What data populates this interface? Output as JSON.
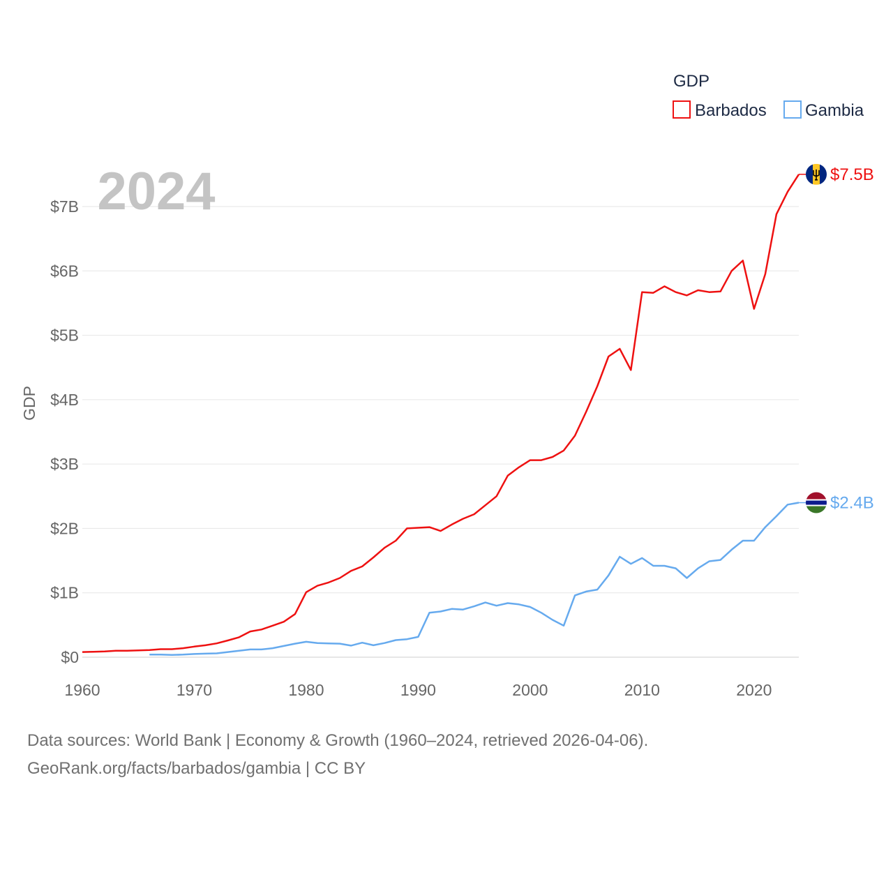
{
  "colors": {
    "barbados": "#ee1111",
    "gambia": "#66aaee",
    "grid": "#e6e6e6",
    "text": "#666666",
    "legend_text": "#1d2a44",
    "year_stamp": "#c4c4c4"
  },
  "chart_data": {
    "type": "line",
    "year_stamp": "2024",
    "ylabel": "GDP",
    "xlabel": "",
    "xlim": [
      1960,
      2024
    ],
    "ylim": [
      0,
      7.5
    ],
    "x_ticks": [
      1960,
      1970,
      1980,
      1990,
      2000,
      2010,
      2020
    ],
    "y_ticks": [
      {
        "value": 0,
        "label": "$0"
      },
      {
        "value": 1,
        "label": "$1B"
      },
      {
        "value": 2,
        "label": "$2B"
      },
      {
        "value": 3,
        "label": "$3B"
      },
      {
        "value": 4,
        "label": "$4B"
      },
      {
        "value": 5,
        "label": "$5B"
      },
      {
        "value": 6,
        "label": "$6B"
      },
      {
        "value": 7,
        "label": "$7B"
      }
    ],
    "legend": {
      "title": "GDP",
      "position": "top-right"
    },
    "units": "billions of US$",
    "series": [
      {
        "name": "Barbados",
        "key": "barbados",
        "end_label": "$7.5B",
        "flag": "barbados-flag",
        "x": [
          1960,
          1961,
          1962,
          1963,
          1964,
          1965,
          1966,
          1967,
          1968,
          1969,
          1970,
          1971,
          1972,
          1973,
          1974,
          1975,
          1976,
          1977,
          1978,
          1979,
          1980,
          1981,
          1982,
          1983,
          1984,
          1985,
          1986,
          1987,
          1988,
          1989,
          1990,
          1991,
          1992,
          1993,
          1994,
          1995,
          1996,
          1997,
          1998,
          1999,
          2000,
          2001,
          2002,
          2003,
          2004,
          2005,
          2006,
          2007,
          2008,
          2009,
          2010,
          2011,
          2012,
          2013,
          2014,
          2015,
          2016,
          2017,
          2018,
          2019,
          2020,
          2021,
          2022,
          2023,
          2024
        ],
        "values": [
          0.08,
          0.085,
          0.09,
          0.1,
          0.1,
          0.105,
          0.11,
          0.125,
          0.125,
          0.14,
          0.165,
          0.185,
          0.215,
          0.26,
          0.31,
          0.4,
          0.43,
          0.49,
          0.55,
          0.67,
          1.01,
          1.11,
          1.16,
          1.23,
          1.34,
          1.41,
          1.55,
          1.7,
          1.81,
          2.0,
          2.01,
          2.02,
          1.96,
          2.06,
          2.15,
          2.22,
          2.36,
          2.5,
          2.82,
          2.95,
          3.06,
          3.06,
          3.11,
          3.21,
          3.44,
          3.81,
          4.21,
          4.67,
          4.79,
          4.46,
          5.67,
          5.66,
          5.76,
          5.67,
          5.62,
          5.7,
          5.67,
          5.68,
          6.0,
          6.16,
          5.41,
          5.95,
          6.88,
          7.23,
          7.5
        ]
      },
      {
        "name": "Gambia",
        "key": "gambia",
        "end_label": "$2.4B",
        "flag": "gambia-flag",
        "x": [
          1966,
          1967,
          1968,
          1969,
          1970,
          1971,
          1972,
          1973,
          1974,
          1975,
          1976,
          1977,
          1978,
          1979,
          1980,
          1981,
          1982,
          1983,
          1984,
          1985,
          1986,
          1987,
          1988,
          1989,
          1990,
          1991,
          1992,
          1993,
          1994,
          1995,
          1996,
          1997,
          1998,
          1999,
          2000,
          2001,
          2002,
          2003,
          2004,
          2005,
          2006,
          2007,
          2008,
          2009,
          2010,
          2011,
          2012,
          2013,
          2014,
          2015,
          2016,
          2017,
          2018,
          2019,
          2020,
          2021,
          2022,
          2023,
          2024
        ],
        "values": [
          0.04,
          0.04,
          0.035,
          0.04,
          0.05,
          0.055,
          0.06,
          0.08,
          0.1,
          0.12,
          0.12,
          0.14,
          0.175,
          0.21,
          0.24,
          0.22,
          0.215,
          0.21,
          0.18,
          0.225,
          0.185,
          0.22,
          0.265,
          0.28,
          0.315,
          0.69,
          0.71,
          0.75,
          0.74,
          0.79,
          0.85,
          0.8,
          0.84,
          0.82,
          0.78,
          0.69,
          0.58,
          0.49,
          0.96,
          1.02,
          1.05,
          1.27,
          1.56,
          1.45,
          1.54,
          1.42,
          1.42,
          1.38,
          1.23,
          1.38,
          1.49,
          1.51,
          1.67,
          1.81,
          1.81,
          2.02,
          2.19,
          2.37,
          2.4
        ]
      }
    ]
  },
  "footer": {
    "line1": "Data sources: World Bank | Economy & Growth (1960–2024, retrieved 2026-04-06).",
    "line2": "GeoRank.org/facts/barbados/gambia | CC BY"
  }
}
